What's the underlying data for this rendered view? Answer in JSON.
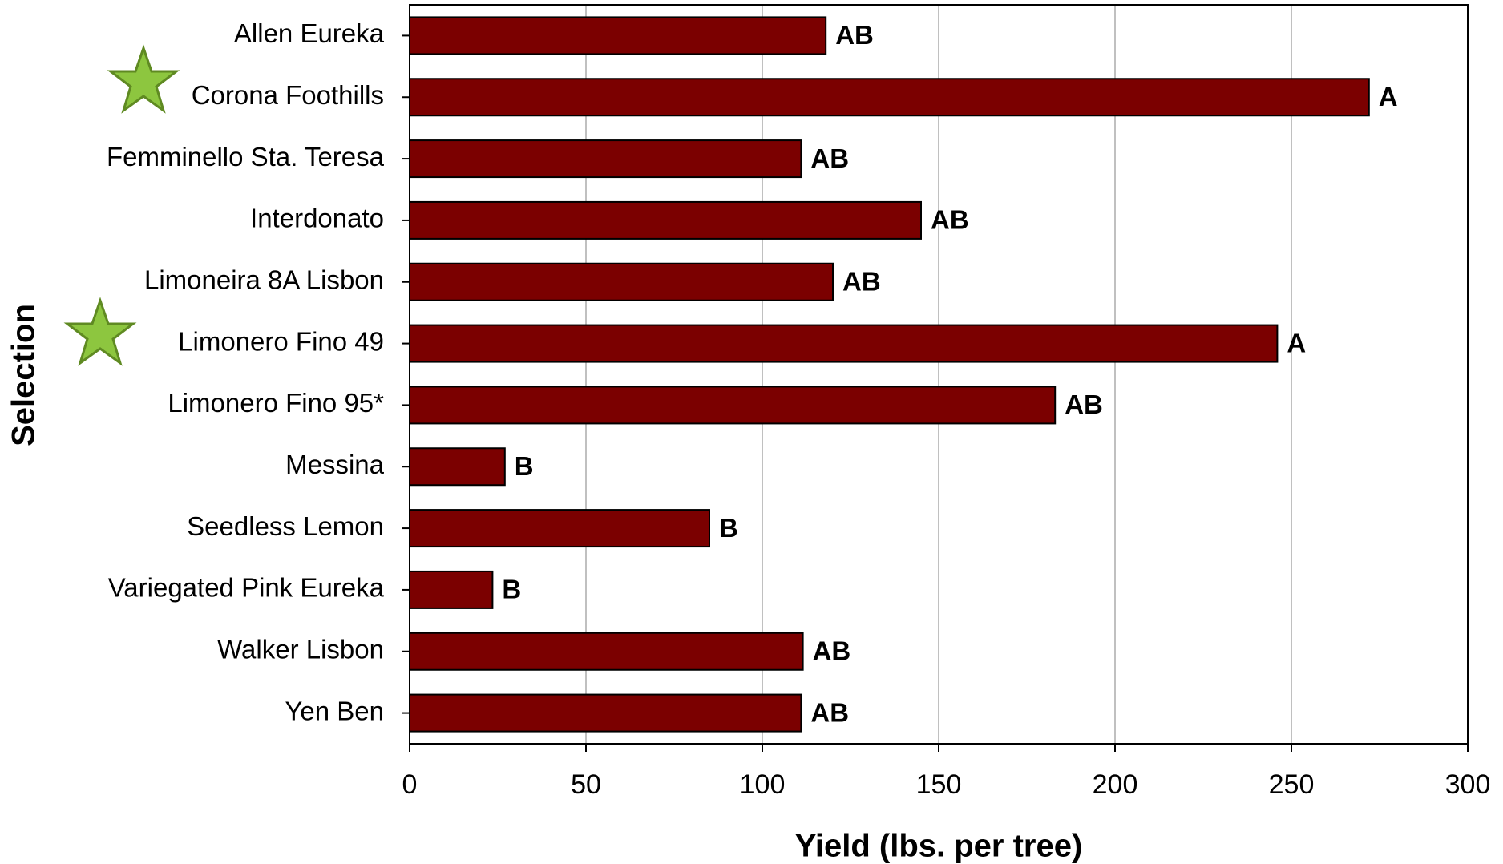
{
  "chart_data": {
    "type": "bar",
    "orientation": "horizontal",
    "x_label": "Yield (lbs. per tree)",
    "y_label": "Selection",
    "categories": [
      "Allen Eureka",
      "Corona Foothills",
      "Femminello Sta. Teresa",
      "Interdonato",
      "Limoneira 8A Lisbon",
      "Limonero Fino 49",
      "Limonero Fino 95*",
      "Messina",
      "Seedless Lemon",
      "Variegated Pink Eureka",
      "Walker Lisbon",
      "Yen Ben"
    ],
    "values": [
      118,
      272,
      111,
      145,
      120,
      246,
      183,
      27,
      85,
      23.5,
      111.5,
      111
    ],
    "letters": [
      "AB",
      "A",
      "AB",
      "AB",
      "AB",
      "A",
      "AB",
      "B",
      "B",
      "B",
      "AB",
      "AB"
    ],
    "color": "#7b0000",
    "xlim": [
      0,
      300
    ],
    "xticks": [
      0,
      50,
      100,
      150,
      200,
      250,
      300
    ],
    "grid": true
  }
}
